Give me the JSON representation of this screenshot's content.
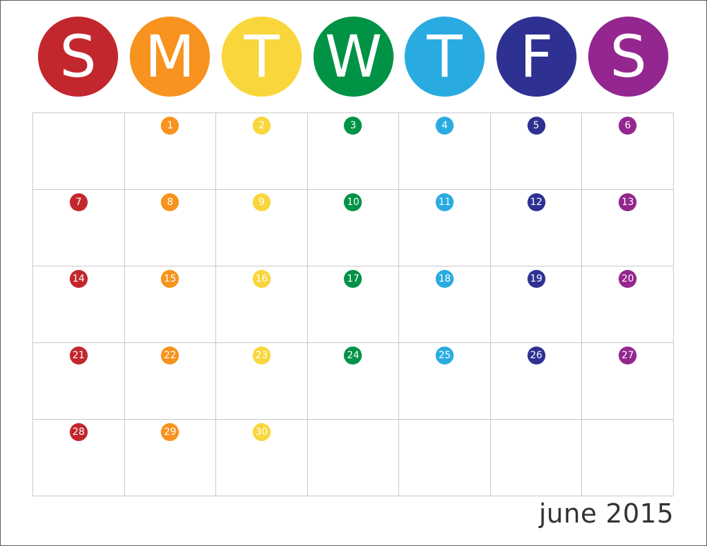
{
  "headers": [
    {
      "label": "S",
      "color": "#c1272d"
    },
    {
      "label": "M",
      "color": "#f7931e"
    },
    {
      "label": "T",
      "color": "#f9d63c"
    },
    {
      "label": "W",
      "color": "#009245"
    },
    {
      "label": "T",
      "color": "#29abe2"
    },
    {
      "label": "F",
      "color": "#2e3192"
    },
    {
      "label": "S",
      "color": "#93278f"
    }
  ],
  "weeks": [
    [
      "",
      "1",
      "2",
      "3",
      "4",
      "5",
      "6"
    ],
    [
      "7",
      "8",
      "9",
      "10",
      "11",
      "12",
      "13"
    ],
    [
      "14",
      "15",
      "16",
      "17",
      "18",
      "19",
      "20"
    ],
    [
      "21",
      "22",
      "23",
      "24",
      "25",
      "26",
      "27"
    ],
    [
      "28",
      "29",
      "30",
      "",
      "",
      "",
      ""
    ]
  ],
  "month_label": "june 2015"
}
